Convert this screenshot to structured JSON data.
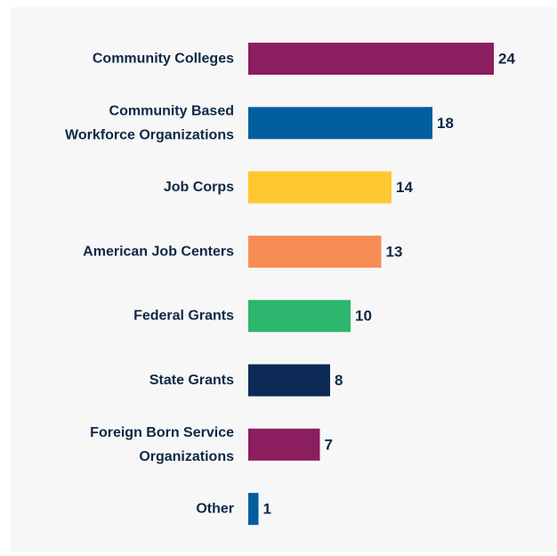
{
  "chart_data": {
    "type": "bar",
    "orientation": "horizontal",
    "categories": [
      "Community Colleges",
      "Community Based Workforce Organizations",
      "Job Corps",
      "American Job Centers",
      "Federal Grants",
      "State Grants",
      "Foreign Born Service Organizations",
      "Other"
    ],
    "category_lines": [
      [
        "Community Colleges"
      ],
      [
        "Community Based",
        "Workforce Organizations"
      ],
      [
        "Job Corps"
      ],
      [
        "American Job Centers"
      ],
      [
        "Federal Grants"
      ],
      [
        "State Grants"
      ],
      [
        "Foreign Born Service",
        "Organizations"
      ],
      [
        "Other"
      ]
    ],
    "values": [
      24,
      18,
      14,
      13,
      10,
      8,
      7,
      1
    ],
    "colors": [
      "#8a1e5f",
      "#005e9e",
      "#fec72f",
      "#f78d55",
      "#2eb56e",
      "#0d2955",
      "#8a1e5f",
      "#005e9e"
    ],
    "title": "",
    "xlabel": "",
    "ylabel": "",
    "xlim": [
      0,
      24
    ],
    "grid": false,
    "legend": "none",
    "data_labels": true
  },
  "colors": {
    "panel_background": "#f7f7f7",
    "text": "#0f2846"
  }
}
